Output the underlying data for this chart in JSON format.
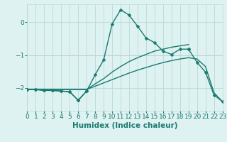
{
  "xlabel": "Humidex (Indice chaleur)",
  "x_values": [
    0,
    1,
    2,
    3,
    4,
    5,
    6,
    7,
    8,
    9,
    10,
    11,
    12,
    13,
    14,
    15,
    16,
    17,
    18,
    19,
    20,
    21,
    22,
    23
  ],
  "series": [
    {
      "y": [
        -2.05,
        -2.05,
        -2.08,
        -2.08,
        -2.1,
        -2.12,
        -2.38,
        -2.1,
        -1.6,
        -1.15,
        -0.05,
        0.38,
        0.22,
        -0.12,
        -0.48,
        -0.62,
        -0.88,
        -0.98,
        -0.82,
        -0.82,
        null,
        null,
        null,
        null
      ],
      "marker": true,
      "connect_ends": false
    },
    {
      "y": [
        -2.05,
        -2.05,
        -2.08,
        -2.08,
        -2.1,
        -2.12,
        -2.38,
        -2.1,
        null,
        null,
        null,
        null,
        null,
        null,
        null,
        null,
        null,
        null,
        null,
        -0.82,
        -1.22,
        -1.52,
        -2.22,
        -2.42
      ],
      "marker": true,
      "connect_ends": false
    },
    {
      "y": [
        -2.05,
        -2.05,
        -2.05,
        -2.05,
        -2.05,
        -2.05,
        -2.05,
        -2.05,
        -1.88,
        -1.72,
        -1.52,
        -1.35,
        -1.2,
        -1.08,
        -0.98,
        -0.88,
        -0.82,
        -0.76,
        -0.72,
        -0.68,
        null,
        null,
        null,
        null
      ],
      "marker": false,
      "connect_ends": false
    },
    {
      "y": [
        -2.05,
        -2.05,
        -2.05,
        -2.05,
        -2.05,
        -2.05,
        -2.05,
        -2.05,
        -1.95,
        -1.85,
        -1.75,
        -1.65,
        -1.55,
        -1.46,
        -1.38,
        -1.3,
        -1.23,
        -1.17,
        -1.12,
        -1.08,
        -1.12,
        -1.35,
        -2.15,
        -2.42
      ],
      "marker": false,
      "connect_ends": false
    }
  ],
  "ylim": [
    -2.7,
    0.55
  ],
  "yticks": [
    0,
    -1,
    -2
  ],
  "xlim": [
    0,
    23
  ],
  "bg_color": "#dff2f2",
  "grid_color": "#b8dada",
  "line_color": "#1a7a6e",
  "red_line_y": -1,
  "tick_fontsize": 6.5,
  "label_fontsize": 7.5,
  "marker_size": 2.5,
  "linewidth": 1.0
}
